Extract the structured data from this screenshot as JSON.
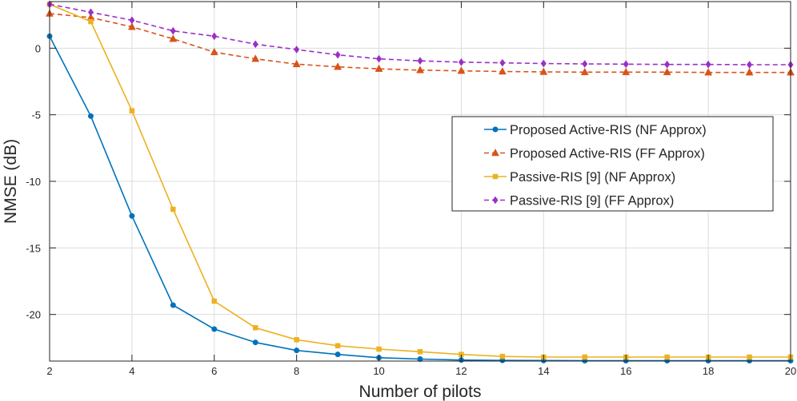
{
  "chart_data": {
    "type": "line",
    "title": "",
    "xlabel": "Number of pilots",
    "ylabel": "NMSE (dB)",
    "xlim": [
      2,
      20
    ],
    "ylim": [
      -23.5,
      3.5
    ],
    "xticks": [
      2,
      4,
      6,
      8,
      10,
      12,
      14,
      16,
      18,
      20
    ],
    "yticks": [
      0,
      -5,
      -10,
      -15,
      -20
    ],
    "ytick_labels": [
      "0",
      "-5",
      "-10",
      "-15",
      "-20"
    ],
    "grid": true,
    "legend_position": "right",
    "x": [
      2,
      3,
      4,
      5,
      6,
      7,
      8,
      9,
      10,
      11,
      12,
      13,
      14,
      15,
      16,
      17,
      18,
      19,
      20
    ],
    "series": [
      {
        "name": "Proposed Active-RIS (NF Approx)",
        "color": "#0072BD",
        "line_style": "solid",
        "marker": "circle",
        "values": [
          0.9,
          -5.1,
          -12.6,
          -19.3,
          -21.1,
          -22.1,
          -22.7,
          -23.0,
          -23.25,
          -23.35,
          -23.42,
          -23.45,
          -23.46,
          -23.47,
          -23.47,
          -23.47,
          -23.47,
          -23.47,
          -23.47
        ]
      },
      {
        "name": "Proposed Active-RIS (FF Approx)",
        "color": "#D95319",
        "line_style": "dashed",
        "marker": "triangle",
        "values": [
          2.6,
          2.3,
          1.6,
          0.7,
          -0.3,
          -0.8,
          -1.2,
          -1.4,
          -1.55,
          -1.65,
          -1.7,
          -1.75,
          -1.78,
          -1.8,
          -1.8,
          -1.8,
          -1.82,
          -1.82,
          -1.82
        ]
      },
      {
        "name": "Passive-RIS [9] (NF Approx)",
        "color": "#EDB120",
        "line_style": "solid",
        "marker": "square",
        "values": [
          3.3,
          2.0,
          -4.7,
          -12.1,
          -19.0,
          -21.0,
          -21.9,
          -22.35,
          -22.6,
          -22.8,
          -23.0,
          -23.15,
          -23.2,
          -23.2,
          -23.2,
          -23.2,
          -23.2,
          -23.2,
          -23.2
        ]
      },
      {
        "name": "Passive-RIS [9] (FF Approx)",
        "color": "#9B2EC9",
        "line_style": "dashed",
        "marker": "diamond",
        "values": [
          3.3,
          2.7,
          2.1,
          1.3,
          0.9,
          0.3,
          -0.1,
          -0.5,
          -0.8,
          -0.95,
          -1.05,
          -1.1,
          -1.15,
          -1.18,
          -1.2,
          -1.22,
          -1.22,
          -1.24,
          -1.24
        ]
      }
    ]
  }
}
